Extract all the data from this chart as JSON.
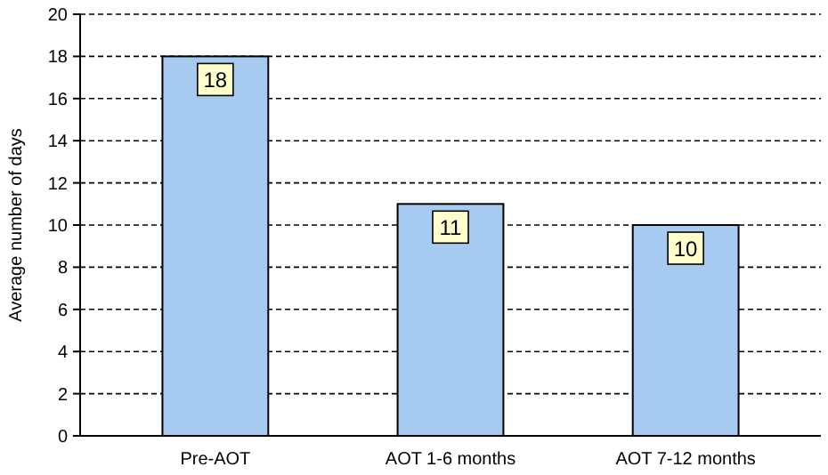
{
  "chart_data": {
    "type": "bar",
    "ylabel": "Average number of days",
    "categories": [
      "Pre-AOT",
      "AOT 1-6 months",
      "AOT 7-12 months"
    ],
    "values": [
      18,
      11,
      10
    ],
    "color": "#a6caf0",
    "ylim": [
      0,
      20
    ],
    "yticks": [
      0,
      2,
      4,
      6,
      8,
      10,
      12,
      14,
      16,
      18,
      20
    ],
    "grid": "y",
    "data_labels": true
  }
}
